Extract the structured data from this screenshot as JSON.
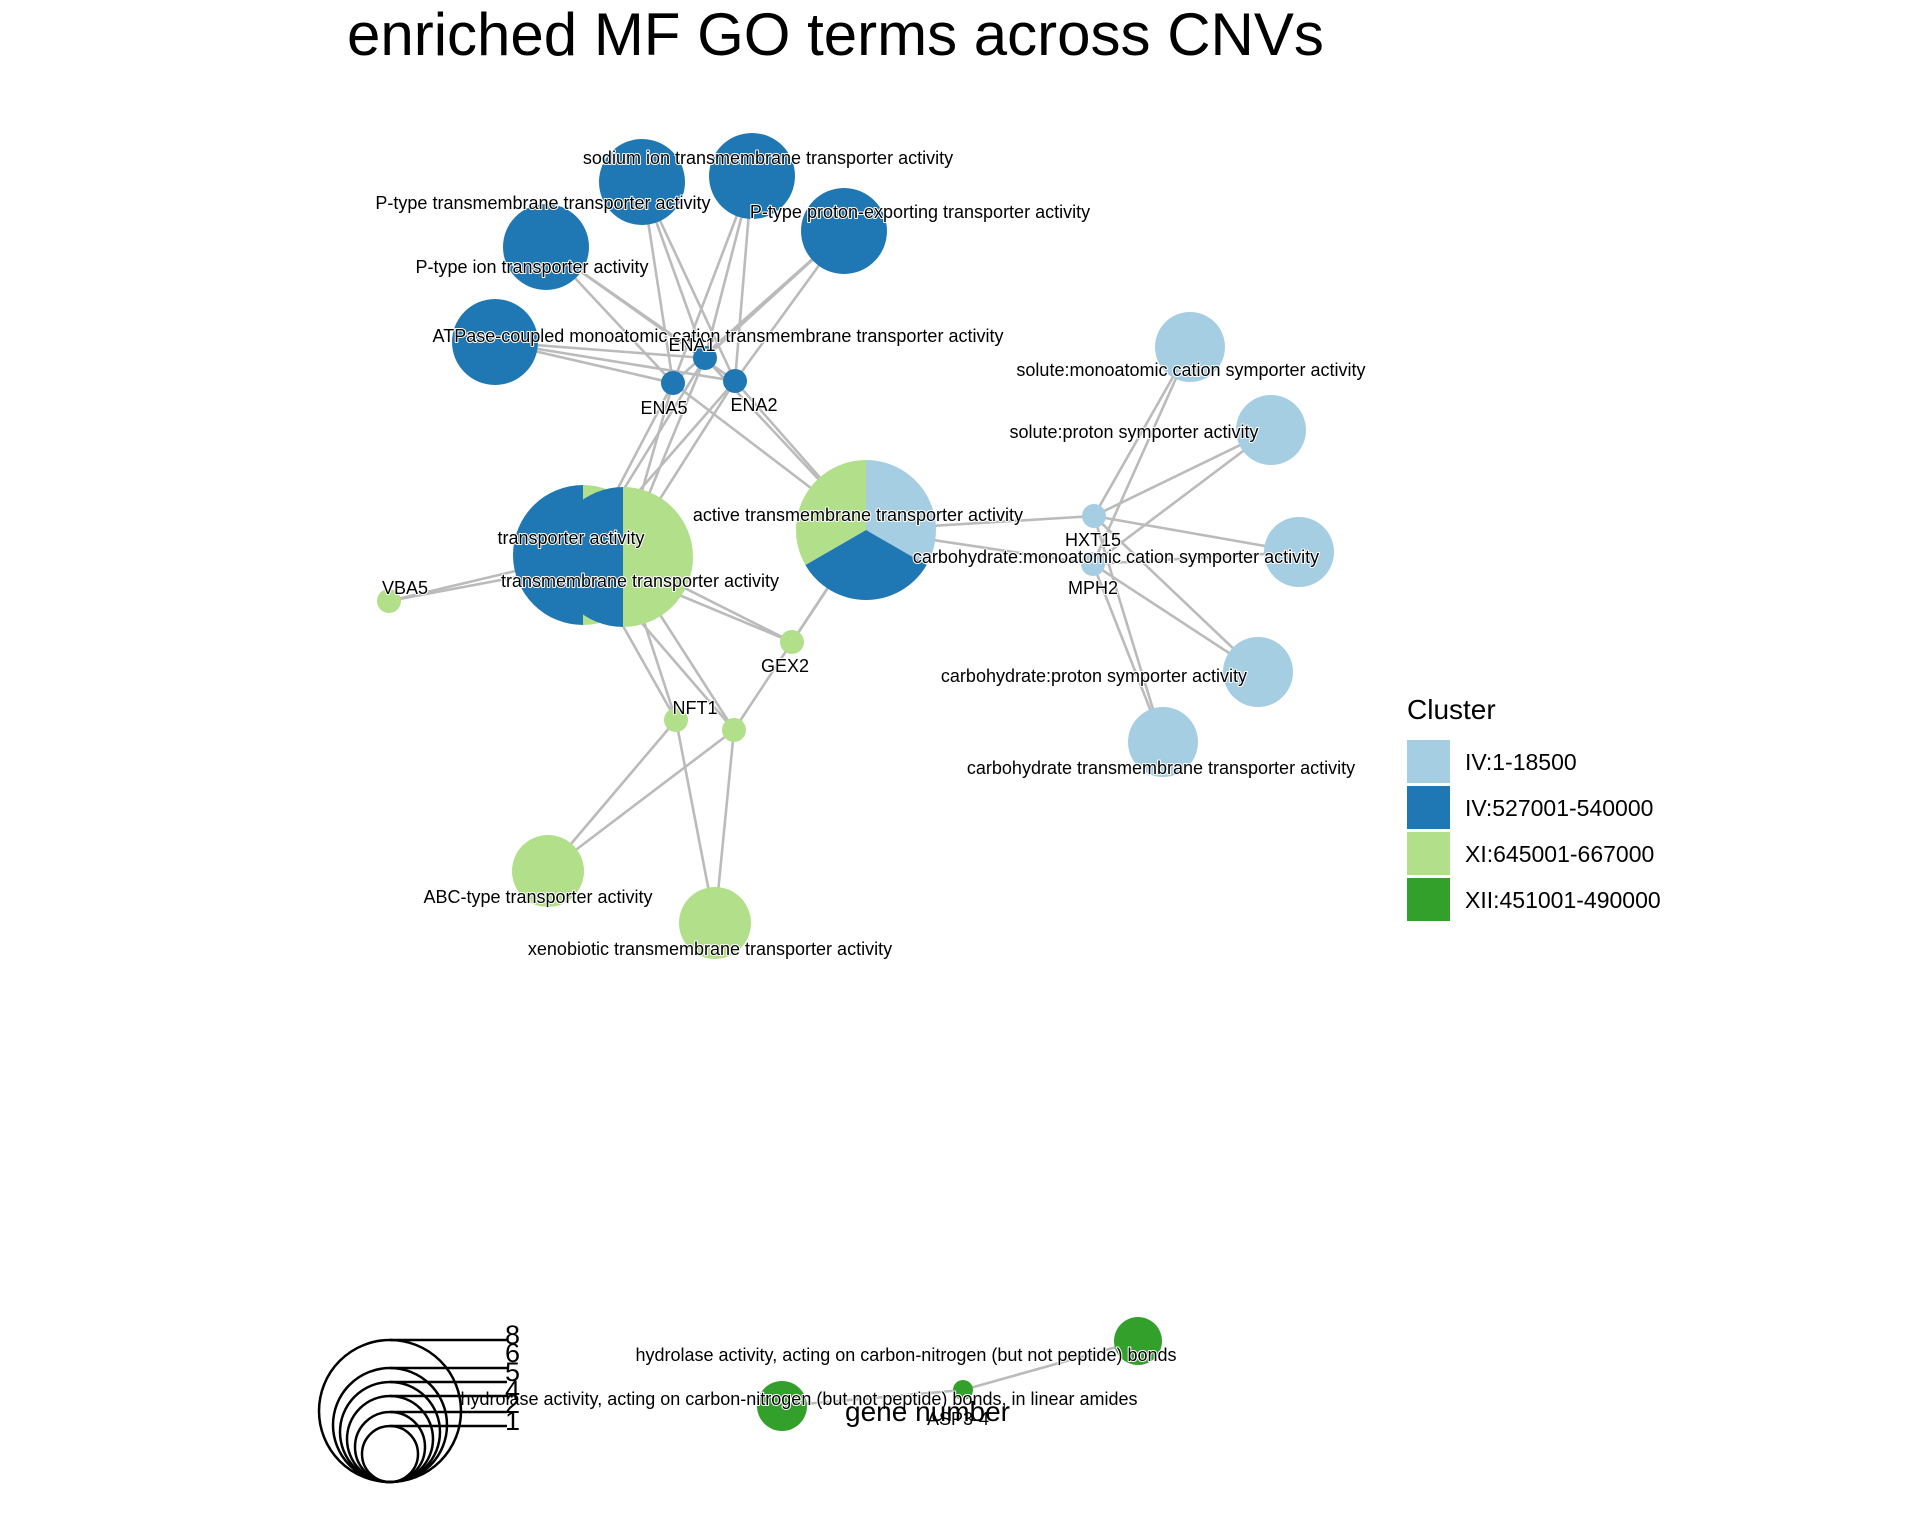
{
  "title": "enriched MF GO terms across CNVs",
  "legend": {
    "cluster_title": "Cluster",
    "clusters": [
      {
        "key": "c1",
        "label": "IV:1-18500",
        "color": "#A6CEE3"
      },
      {
        "key": "c2",
        "label": "IV:527001-540000",
        "color": "#1F78B4"
      },
      {
        "key": "c3",
        "label": "XI:645001-667000",
        "color": "#B2DF8A"
      },
      {
        "key": "c4",
        "label": "XII:451001-490000",
        "color": "#33A02C"
      }
    ],
    "size_title": "gene number",
    "size_breaks": [
      "1",
      "2",
      "4",
      "5",
      "6",
      "8"
    ]
  },
  "nodes": [
    {
      "id": "sodium",
      "label": "sodium ion transmembrane transporter activity",
      "type": "term",
      "clusters": [
        "c2"
      ],
      "size": 4
    },
    {
      "id": "ptype_tm",
      "label": "P-type transmembrane transporter activity",
      "type": "term",
      "clusters": [
        "c2"
      ],
      "size": 4
    },
    {
      "id": "ptype_proton",
      "label": "P-type proton-exporting transporter activity",
      "type": "term",
      "clusters": [
        "c2"
      ],
      "size": 4
    },
    {
      "id": "ptype_ion",
      "label": "P-type ion transporter activity",
      "type": "term",
      "clusters": [
        "c2"
      ],
      "size": 4
    },
    {
      "id": "atpase",
      "label": "ATPase-coupled monoatomic cation transmembrane transporter activity",
      "type": "term",
      "clusters": [
        "c2"
      ],
      "size": 4
    },
    {
      "id": "ena1",
      "label": "ENA1",
      "type": "gene",
      "clusters": [
        "c2"
      ],
      "size": 1
    },
    {
      "id": "ena5",
      "label": "ENA5",
      "type": "gene",
      "clusters": [
        "c2"
      ],
      "size": 1
    },
    {
      "id": "ena2",
      "label": "ENA2",
      "type": "gene",
      "clusters": [
        "c2"
      ],
      "size": 1
    },
    {
      "id": "transporter",
      "label": "transporter activity",
      "type": "term",
      "clusters": [
        "c3",
        "c2"
      ],
      "size": 8
    },
    {
      "id": "transmembrane",
      "label": "transmembrane transporter activity",
      "type": "term",
      "clusters": [
        "c3",
        "c2"
      ],
      "size": 8
    },
    {
      "id": "active",
      "label": "active transmembrane transporter activity",
      "type": "term",
      "clusters": [
        "c1",
        "c2",
        "c3"
      ],
      "size": 8
    },
    {
      "id": "vba5",
      "label": "VBA5",
      "type": "gene",
      "clusters": [
        "c3"
      ],
      "size": 1
    },
    {
      "id": "gex2",
      "label": "GEX2",
      "type": "gene",
      "clusters": [
        "c3"
      ],
      "size": 1
    },
    {
      "id": "nft1",
      "label": "NFT1",
      "type": "gene",
      "clusters": [
        "c3"
      ],
      "size": 1
    },
    {
      "id": "gene_x",
      "label": "",
      "type": "gene",
      "clusters": [
        "c3"
      ],
      "size": 1
    },
    {
      "id": "abc",
      "label": "ABC-type transporter activity",
      "type": "term",
      "clusters": [
        "c3"
      ],
      "size": 2
    },
    {
      "id": "xeno",
      "label": "xenobiotic transmembrane transporter activity",
      "type": "term",
      "clusters": [
        "c3"
      ],
      "size": 2
    },
    {
      "id": "hxt15",
      "label": "HXT15",
      "type": "gene",
      "clusters": [
        "c1"
      ],
      "size": 1
    },
    {
      "id": "mph2",
      "label": "MPH2",
      "type": "gene",
      "clusters": [
        "c1"
      ],
      "size": 1
    },
    {
      "id": "solute_mono",
      "label": "solute:monoatomic cation symporter activity",
      "type": "term",
      "clusters": [
        "c1"
      ],
      "size": 2
    },
    {
      "id": "solute_proton",
      "label": "solute:proton symporter activity",
      "type": "term",
      "clusters": [
        "c1"
      ],
      "size": 2
    },
    {
      "id": "carb_mono",
      "label": "carbohydrate:monoatomic cation symporter activity",
      "type": "term",
      "clusters": [
        "c1"
      ],
      "size": 2
    },
    {
      "id": "carb_proton",
      "label": "carbohydrate:proton symporter activity",
      "type": "term",
      "clusters": [
        "c1"
      ],
      "size": 2
    },
    {
      "id": "carb_tm",
      "label": "carbohydrate transmembrane transporter activity",
      "type": "term",
      "clusters": [
        "c1"
      ],
      "size": 2
    },
    {
      "id": "hydrolase1",
      "label": "hydrolase activity, acting on carbon-nitrogen (but not peptide) bonds",
      "type": "term",
      "clusters": [
        "c4"
      ],
      "size": 1
    },
    {
      "id": "hydrolase2",
      "label": "hydrolase activity, acting on carbon-nitrogen (but not peptide) bonds, in linear amides",
      "type": "term",
      "clusters": [
        "c4"
      ],
      "size": 1
    },
    {
      "id": "asp34",
      "label": "ASP3-4",
      "type": "gene",
      "clusters": [
        "c4"
      ],
      "size": 1
    }
  ],
  "edges": [
    [
      "ena1",
      "sodium"
    ],
    [
      "ena2",
      "sodium"
    ],
    [
      "ena5",
      "sodium"
    ],
    [
      "ena1",
      "ptype_tm"
    ],
    [
      "ena2",
      "ptype_tm"
    ],
    [
      "ena5",
      "ptype_tm"
    ],
    [
      "ena1",
      "ptype_proton"
    ],
    [
      "ena2",
      "ptype_proton"
    ],
    [
      "ena5",
      "ptype_proton"
    ],
    [
      "ena1",
      "ptype_ion"
    ],
    [
      "ena2",
      "ptype_ion"
    ],
    [
      "ena5",
      "ptype_ion"
    ],
    [
      "ena1",
      "atpase"
    ],
    [
      "ena2",
      "atpase"
    ],
    [
      "ena5",
      "atpase"
    ],
    [
      "ena1",
      "transporter"
    ],
    [
      "ena2",
      "transporter"
    ],
    [
      "ena5",
      "transporter"
    ],
    [
      "ena1",
      "transmembrane"
    ],
    [
      "ena2",
      "transmembrane"
    ],
    [
      "ena5",
      "transmembrane"
    ],
    [
      "ena1",
      "active"
    ],
    [
      "ena2",
      "active"
    ],
    [
      "ena5",
      "active"
    ],
    [
      "vba5",
      "transporter"
    ],
    [
      "vba5",
      "transmembrane"
    ],
    [
      "gex2",
      "transporter"
    ],
    [
      "gex2",
      "transmembrane"
    ],
    [
      "gex2",
      "active"
    ],
    [
      "nft1",
      "transporter"
    ],
    [
      "nft1",
      "transmembrane"
    ],
    [
      "nft1",
      "abc"
    ],
    [
      "nft1",
      "xeno"
    ],
    [
      "gene_x",
      "transporter"
    ],
    [
      "gene_x",
      "transmembrane"
    ],
    [
      "gene_x",
      "active"
    ],
    [
      "gene_x",
      "abc"
    ],
    [
      "gene_x",
      "xeno"
    ],
    [
      "hxt15",
      "active"
    ],
    [
      "mph2",
      "active"
    ],
    [
      "hxt15",
      "solute_mono"
    ],
    [
      "mph2",
      "solute_mono"
    ],
    [
      "hxt15",
      "solute_proton"
    ],
    [
      "mph2",
      "solute_proton"
    ],
    [
      "hxt15",
      "carb_mono"
    ],
    [
      "mph2",
      "carb_mono"
    ],
    [
      "hxt15",
      "carb_proton"
    ],
    [
      "mph2",
      "carb_proton"
    ],
    [
      "hxt15",
      "carb_tm"
    ],
    [
      "mph2",
      "carb_tm"
    ],
    [
      "asp34",
      "hydrolase1"
    ],
    [
      "asp34",
      "hydrolase2"
    ]
  ]
}
